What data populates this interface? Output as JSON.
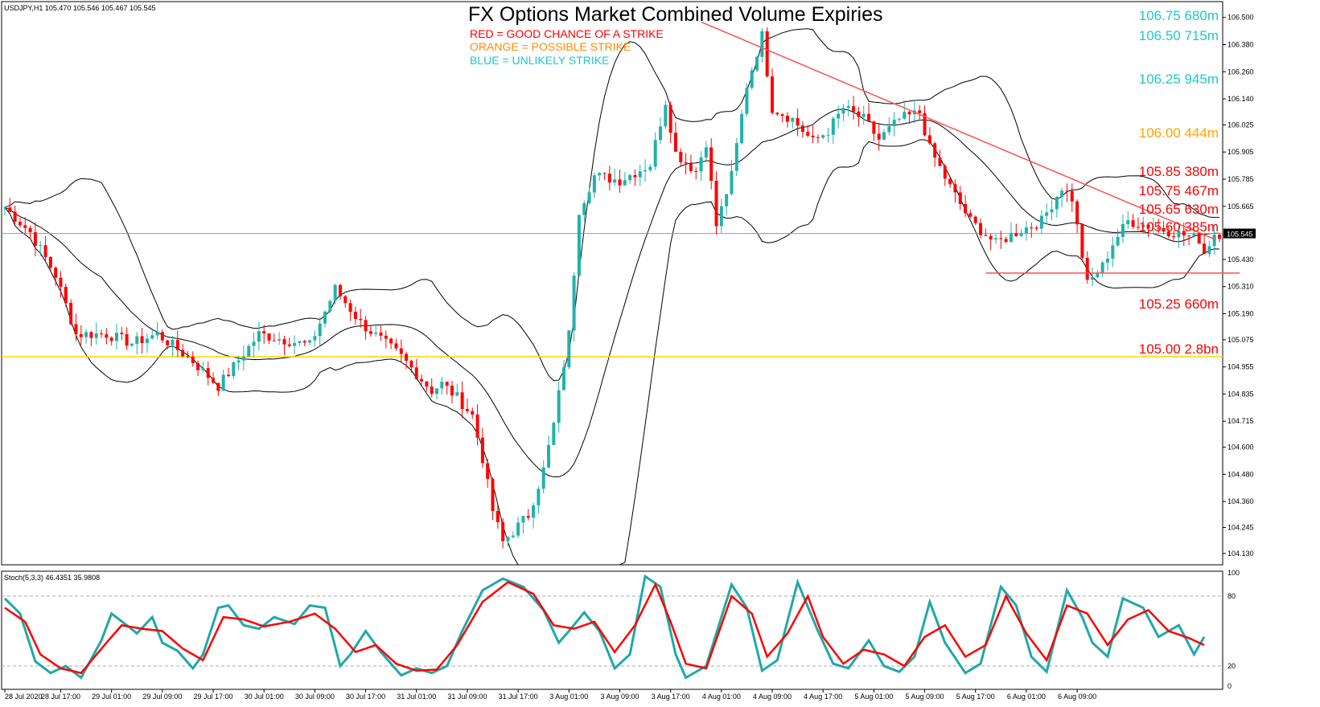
{
  "symbol_line": "USDJPY,H1  105.470 105.546 105.467 105.545",
  "title": "FX Options Market Combined Volume Expiries",
  "legend": [
    {
      "text": "RED = GOOD CHANCE OF A STRIKE",
      "color": "#ff0000"
    },
    {
      "text": "ORANGE = POSSIBLE STRIKE",
      "color": "#ff8c00"
    },
    {
      "text": "BLUE = UNLIKELY STRIKE",
      "color": "#1fc8c8"
    }
  ],
  "stoch_label": "Stoch(5,3,3) 46.4351 35.9808",
  "colors": {
    "bull": "#20b2aa",
    "bear": "#ff0000",
    "stoch_main": "#20a8a8",
    "stoch_signal": "#ff0000",
    "expiry_red": "#ff0000",
    "expiry_orange": "#ffa500",
    "expiry_blue": "#1fc8c8",
    "yellow_line": "#ffd700"
  },
  "chart_data": {
    "type": "candlestick",
    "ylim": [
      104.08,
      106.57
    ],
    "y_ticks": [
      "106.500",
      "106.380",
      "106.260",
      "106.140",
      "106.025",
      "105.905",
      "105.785",
      "105.665",
      "105.430",
      "105.310",
      "105.190",
      "105.075",
      "104.955",
      "104.835",
      "104.715",
      "104.600",
      "104.480",
      "104.360",
      "104.245",
      "104.130"
    ],
    "current_price": "105.545",
    "x_labels": [
      "28 Jul 2020",
      "28 Jul 17:00",
      "29 Jul 01:00",
      "29 Jul 09:00",
      "29 Jul 17:00",
      "30 Jul 01:00",
      "30 Jul 09:00",
      "30 Jul 17:00",
      "31 Jul 01:00",
      "31 Jul 09:00",
      "31 Jul 17:00",
      "3 Aug 01:00",
      "3 Aug 09:00",
      "3 Aug 17:00",
      "4 Aug 01:00",
      "4 Aug 09:00",
      "4 Aug 17:00",
      "5 Aug 01:00",
      "5 Aug 09:00",
      "5 Aug 17:00",
      "6 Aug 01:00",
      "6 Aug 09:00"
    ],
    "expiries": [
      {
        "price": 106.75,
        "label": "106.75 680m",
        "color": "blue"
      },
      {
        "price": 106.5,
        "label": "106.50 715m",
        "color": "blue"
      },
      {
        "price": 106.25,
        "label": "106.25 945m",
        "color": "blue"
      },
      {
        "price": 106.0,
        "label": "106.00 444m",
        "color": "orange"
      },
      {
        "price": 105.85,
        "label": "105.85 380m",
        "color": "red"
      },
      {
        "price": 105.75,
        "label": "105.75 467m",
        "color": "red"
      },
      {
        "price": 105.65,
        "label": "105.65 630m",
        "color": "red"
      },
      {
        "price": 105.6,
        "label": "105.60 385m",
        "color": "red"
      },
      {
        "price": 105.25,
        "label": "105.25 660m",
        "color": "red"
      },
      {
        "price": 105.0,
        "label": "105.00 2.8bn",
        "color": "red"
      }
    ],
    "close_path": [
      [
        0,
        105.66
      ],
      [
        5,
        105.55
      ],
      [
        10,
        105.36
      ],
      [
        14,
        105.1
      ],
      [
        20,
        105.1
      ],
      [
        25,
        105.06
      ],
      [
        30,
        105.1
      ],
      [
        33,
        105.05
      ],
      [
        37,
        104.98
      ],
      [
        42,
        104.87
      ],
      [
        50,
        105.1
      ],
      [
        60,
        105.05
      ],
      [
        65,
        105.3
      ],
      [
        70,
        105.15
      ],
      [
        78,
        105.0
      ],
      [
        84,
        104.85
      ],
      [
        86,
        104.88
      ],
      [
        89,
        104.82
      ],
      [
        92,
        104.74
      ],
      [
        94,
        104.55
      ],
      [
        96,
        104.32
      ],
      [
        98,
        104.18
      ],
      [
        103,
        104.3
      ],
      [
        106,
        104.5
      ],
      [
        108,
        104.7
      ],
      [
        111,
        105.1
      ],
      [
        113,
        105.65
      ],
      [
        116,
        105.8
      ],
      [
        121,
        105.78
      ],
      [
        127,
        105.85
      ],
      [
        130,
        106.13
      ],
      [
        132,
        105.9
      ],
      [
        136,
        105.82
      ],
      [
        138,
        105.95
      ],
      [
        140,
        105.58
      ],
      [
        143,
        105.8
      ],
      [
        146,
        106.2
      ],
      [
        149,
        106.42
      ],
      [
        151,
        106.1
      ],
      [
        155,
        106.05
      ],
      [
        159,
        105.95
      ],
      [
        162,
        106.0
      ],
      [
        165,
        106.1
      ],
      [
        169,
        106.05
      ],
      [
        172,
        105.96
      ],
      [
        176,
        106.05
      ],
      [
        180,
        106.08
      ],
      [
        182,
        105.92
      ],
      [
        186,
        105.75
      ],
      [
        190,
        105.6
      ],
      [
        195,
        105.5
      ],
      [
        199,
        105.55
      ],
      [
        204,
        105.6
      ],
      [
        208,
        105.75
      ],
      [
        210,
        105.7
      ],
      [
        213,
        105.32
      ],
      [
        216,
        105.4
      ],
      [
        218,
        105.5
      ],
      [
        221,
        105.6
      ],
      [
        225,
        105.58
      ],
      [
        230,
        105.55
      ],
      [
        235,
        105.52
      ],
      [
        236,
        105.46
      ],
      [
        238,
        105.545
      ]
    ],
    "stoch_main": [
      [
        0,
        78
      ],
      [
        3,
        65
      ],
      [
        6,
        24
      ],
      [
        9,
        14
      ],
      [
        12,
        20
      ],
      [
        15,
        10
      ],
      [
        19,
        42
      ],
      [
        21,
        65
      ],
      [
        24,
        55
      ],
      [
        26,
        48
      ],
      [
        29,
        62
      ],
      [
        31,
        40
      ],
      [
        34,
        33
      ],
      [
        37,
        18
      ],
      [
        39,
        30
      ],
      [
        42,
        70
      ],
      [
        44,
        72
      ],
      [
        47,
        55
      ],
      [
        50,
        52
      ],
      [
        53,
        62
      ],
      [
        57,
        56
      ],
      [
        60,
        72
      ],
      [
        63,
        70
      ],
      [
        66,
        20
      ],
      [
        68,
        30
      ],
      [
        71,
        50
      ],
      [
        74,
        32
      ],
      [
        78,
        12
      ],
      [
        81,
        18
      ],
      [
        84,
        14
      ],
      [
        87,
        20
      ],
      [
        90,
        50
      ],
      [
        94,
        85
      ],
      [
        98,
        95
      ],
      [
        102,
        88
      ],
      [
        106,
        68
      ],
      [
        109,
        40
      ],
      [
        111,
        50
      ],
      [
        114,
        66
      ],
      [
        117,
        50
      ],
      [
        120,
        18
      ],
      [
        123,
        30
      ],
      [
        126,
        97
      ],
      [
        129,
        88
      ],
      [
        132,
        30
      ],
      [
        134,
        10
      ],
      [
        138,
        20
      ],
      [
        143,
        90
      ],
      [
        146,
        70
      ],
      [
        149,
        16
      ],
      [
        152,
        25
      ],
      [
        156,
        92
      ],
      [
        160,
        50
      ],
      [
        163,
        22
      ],
      [
        166,
        18
      ],
      [
        170,
        42
      ],
      [
        173,
        20
      ],
      [
        176,
        15
      ],
      [
        179,
        28
      ],
      [
        182,
        75
      ],
      [
        185,
        40
      ],
      [
        189,
        14
      ],
      [
        192,
        22
      ],
      [
        196,
        88
      ],
      [
        199,
        72
      ],
      [
        202,
        28
      ],
      [
        205,
        15
      ],
      [
        209,
        85
      ],
      [
        212,
        62
      ],
      [
        214,
        40
      ],
      [
        217,
        28
      ],
      [
        220,
        78
      ],
      [
        224,
        70
      ],
      [
        227,
        45
      ],
      [
        231,
        55
      ],
      [
        234,
        30
      ],
      [
        236,
        45
      ]
    ],
    "stoch_signal": [
      [
        0,
        70
      ],
      [
        4,
        58
      ],
      [
        7,
        30
      ],
      [
        11,
        18
      ],
      [
        15,
        14
      ],
      [
        20,
        40
      ],
      [
        23,
        55
      ],
      [
        27,
        52
      ],
      [
        31,
        50
      ],
      [
        35,
        35
      ],
      [
        39,
        25
      ],
      [
        43,
        62
      ],
      [
        47,
        60
      ],
      [
        51,
        54
      ],
      [
        56,
        58
      ],
      [
        61,
        65
      ],
      [
        65,
        52
      ],
      [
        69,
        32
      ],
      [
        73,
        38
      ],
      [
        77,
        22
      ],
      [
        81,
        16
      ],
      [
        85,
        17
      ],
      [
        89,
        38
      ],
      [
        94,
        75
      ],
      [
        99,
        92
      ],
      [
        104,
        82
      ],
      [
        108,
        55
      ],
      [
        112,
        52
      ],
      [
        116,
        58
      ],
      [
        120,
        32
      ],
      [
        124,
        55
      ],
      [
        128,
        90
      ],
      [
        131,
        58
      ],
      [
        134,
        22
      ],
      [
        138,
        18
      ],
      [
        143,
        80
      ],
      [
        147,
        65
      ],
      [
        150,
        28
      ],
      [
        154,
        48
      ],
      [
        158,
        80
      ],
      [
        161,
        45
      ],
      [
        165,
        22
      ],
      [
        169,
        34
      ],
      [
        173,
        30
      ],
      [
        177,
        20
      ],
      [
        181,
        45
      ],
      [
        185,
        55
      ],
      [
        189,
        28
      ],
      [
        193,
        38
      ],
      [
        197,
        80
      ],
      [
        201,
        48
      ],
      [
        205,
        25
      ],
      [
        209,
        72
      ],
      [
        213,
        65
      ],
      [
        217,
        38
      ],
      [
        221,
        60
      ],
      [
        225,
        68
      ],
      [
        229,
        50
      ],
      [
        233,
        44
      ],
      [
        236,
        38
      ]
    ]
  }
}
